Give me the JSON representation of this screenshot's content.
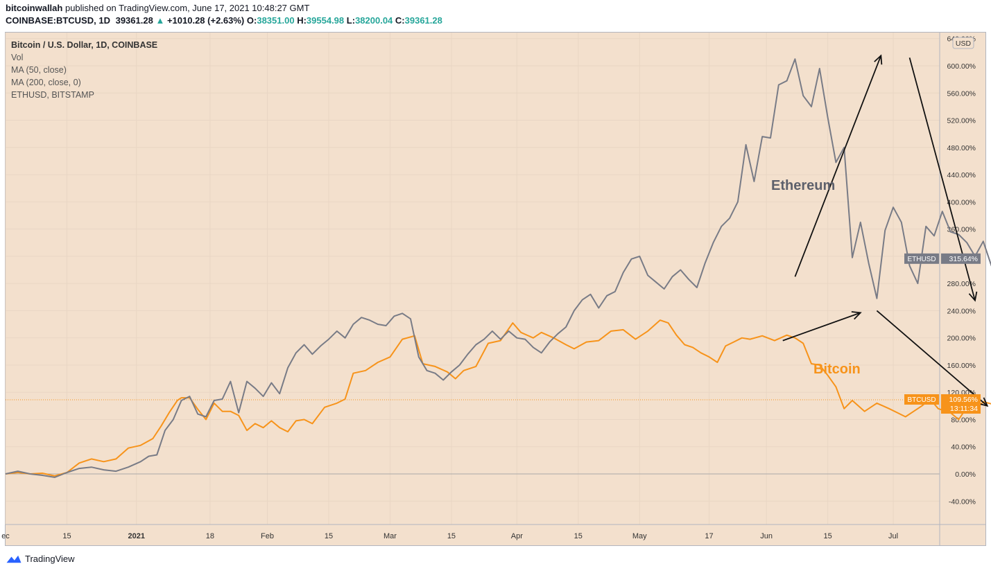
{
  "header": {
    "publisher": "bitcoinwallah",
    "published_text": "published on TradingView.com, June 17, 2021 10:48:27 GMT",
    "symbol": "COINBASE:BTCUSD, 1D",
    "last": "39361.28",
    "change": "+1010.28 (+2.63%)",
    "open_label": "O:",
    "open": "38351.00",
    "high_label": "H:",
    "high": "39554.98",
    "low_label": "L:",
    "low": "38200.04",
    "close_label": "C:",
    "close": "39361.28"
  },
  "legend": {
    "title": "Bitcoin / U.S. Dollar, 1D, COINBASE",
    "items": [
      "Vol",
      "MA (50, close)",
      "MA (200, close, 0)",
      "ETHUSD, BITSTAMP"
    ]
  },
  "annotations": {
    "eth_text": "Ethereum",
    "btc_text": "Bitcoin"
  },
  "price_scale": {
    "currency": "USD"
  },
  "badges": {
    "eth_symbol": "ETHUSD",
    "eth_value": "315.64%",
    "btc_symbol": "BTCUSD",
    "btc_value": "109.56%",
    "btc_countdown": "13:11:34"
  },
  "footer": {
    "brand": "TradingView"
  },
  "colors": {
    "btc": "#f7931a",
    "eth": "#787b86",
    "bg": "#f3e0cd",
    "grid": "#e9d6c4"
  },
  "chart_data": {
    "type": "line",
    "title": "Bitcoin / U.S. Dollar, 1D, COINBASE",
    "ylabel": "",
    "ylim": [
      -60,
      640
    ],
    "y_unit": "%",
    "y_ticks": [
      -40,
      0,
      40,
      80,
      120,
      160,
      200,
      240,
      280,
      320,
      360,
      400,
      440,
      480,
      520,
      560,
      600,
      640
    ],
    "x_ticks": [
      "ec",
      "15",
      "2021",
      "18",
      "Feb",
      "15",
      "Mar",
      "15",
      "Apr",
      "15",
      "May",
      "17",
      "Jun",
      "15",
      "Jul"
    ],
    "x_tick_days": [
      0,
      15,
      32,
      50,
      64,
      79,
      94,
      109,
      125,
      140,
      155,
      172,
      186,
      201,
      217
    ],
    "x_range_days": [
      0,
      237
    ],
    "series": [
      {
        "name": "BTCUSD",
        "color": "#f7931a",
        "points": [
          [
            0,
            0
          ],
          [
            3,
            2
          ],
          [
            6,
            0
          ],
          [
            9,
            1
          ],
          [
            12,
            -3
          ],
          [
            15,
            2
          ],
          [
            18,
            16
          ],
          [
            21,
            22
          ],
          [
            24,
            18
          ],
          [
            27,
            22
          ],
          [
            30,
            38
          ],
          [
            33,
            42
          ],
          [
            36,
            52
          ],
          [
            38,
            70
          ],
          [
            40,
            90
          ],
          [
            42,
            108
          ],
          [
            43,
            112
          ],
          [
            45,
            112
          ],
          [
            47,
            95
          ],
          [
            49,
            80
          ],
          [
            51,
            104
          ],
          [
            53,
            92
          ],
          [
            55,
            92
          ],
          [
            57,
            86
          ],
          [
            59,
            64
          ],
          [
            61,
            74
          ],
          [
            63,
            68
          ],
          [
            65,
            78
          ],
          [
            67,
            68
          ],
          [
            69,
            62
          ],
          [
            71,
            78
          ],
          [
            73,
            80
          ],
          [
            75,
            74
          ],
          [
            78,
            98
          ],
          [
            81,
            104
          ],
          [
            83,
            110
          ],
          [
            85,
            148
          ],
          [
            88,
            152
          ],
          [
            91,
            164
          ],
          [
            94,
            172
          ],
          [
            97,
            198
          ],
          [
            100,
            203
          ],
          [
            102,
            162
          ],
          [
            105,
            158
          ],
          [
            108,
            150
          ],
          [
            110,
            140
          ],
          [
            112,
            152
          ],
          [
            115,
            158
          ],
          [
            118,
            192
          ],
          [
            121,
            196
          ],
          [
            124,
            222
          ],
          [
            126,
            208
          ],
          [
            129,
            200
          ],
          [
            131,
            208
          ],
          [
            134,
            200
          ],
          [
            137,
            190
          ],
          [
            139,
            184
          ],
          [
            142,
            194
          ],
          [
            145,
            196
          ],
          [
            148,
            210
          ],
          [
            151,
            212
          ],
          [
            154,
            198
          ],
          [
            157,
            210
          ],
          [
            160,
            226
          ],
          [
            162,
            222
          ],
          [
            164,
            204
          ],
          [
            166,
            190
          ],
          [
            168,
            186
          ],
          [
            170,
            178
          ],
          [
            172,
            172
          ],
          [
            174,
            164
          ],
          [
            176,
            188
          ],
          [
            178,
            194
          ],
          [
            180,
            200
          ],
          [
            182,
            198
          ],
          [
            185,
            203
          ],
          [
            188,
            196
          ],
          [
            191,
            204
          ],
          [
            193,
            200
          ],
          [
            195,
            192
          ],
          [
            197,
            162
          ],
          [
            199,
            160
          ],
          [
            201,
            145
          ],
          [
            203,
            128
          ],
          [
            205,
            96
          ],
          [
            207,
            108
          ],
          [
            210,
            92
          ],
          [
            213,
            104
          ],
          [
            216,
            96
          ],
          [
            218,
            90
          ],
          [
            220,
            84
          ],
          [
            222,
            92
          ],
          [
            224,
            100
          ],
          [
            226,
            110
          ],
          [
            228,
            96
          ],
          [
            231,
            90
          ],
          [
            233,
            80
          ],
          [
            235,
            98
          ],
          [
            237,
            94
          ],
          [
            239,
            106
          ],
          [
            241,
            103
          ],
          [
            243,
            94
          ],
          [
            245,
            110
          ],
          [
            247,
            108
          ],
          [
            249,
            102
          ],
          [
            251,
            109
          ]
        ]
      },
      {
        "name": "ETHUSD",
        "color": "#787b86",
        "points": [
          [
            0,
            0
          ],
          [
            3,
            4
          ],
          [
            6,
            0
          ],
          [
            9,
            -2
          ],
          [
            12,
            -5
          ],
          [
            15,
            2
          ],
          [
            18,
            8
          ],
          [
            21,
            10
          ],
          [
            24,
            6
          ],
          [
            27,
            4
          ],
          [
            30,
            10
          ],
          [
            33,
            18
          ],
          [
            35,
            26
          ],
          [
            37,
            28
          ],
          [
            39,
            64
          ],
          [
            41,
            80
          ],
          [
            43,
            108
          ],
          [
            45,
            114
          ],
          [
            47,
            88
          ],
          [
            49,
            84
          ],
          [
            51,
            108
          ],
          [
            53,
            110
          ],
          [
            55,
            136
          ],
          [
            57,
            90
          ],
          [
            59,
            136
          ],
          [
            61,
            126
          ],
          [
            63,
            114
          ],
          [
            65,
            134
          ],
          [
            67,
            118
          ],
          [
            69,
            156
          ],
          [
            71,
            178
          ],
          [
            73,
            190
          ],
          [
            75,
            176
          ],
          [
            77,
            188
          ],
          [
            79,
            198
          ],
          [
            81,
            210
          ],
          [
            83,
            200
          ],
          [
            85,
            220
          ],
          [
            87,
            230
          ],
          [
            89,
            226
          ],
          [
            91,
            220
          ],
          [
            93,
            218
          ],
          [
            95,
            232
          ],
          [
            97,
            236
          ],
          [
            99,
            228
          ],
          [
            101,
            172
          ],
          [
            103,
            152
          ],
          [
            105,
            148
          ],
          [
            107,
            138
          ],
          [
            109,
            150
          ],
          [
            111,
            160
          ],
          [
            113,
            176
          ],
          [
            115,
            190
          ],
          [
            117,
            198
          ],
          [
            119,
            210
          ],
          [
            121,
            198
          ],
          [
            123,
            210
          ],
          [
            125,
            200
          ],
          [
            127,
            198
          ],
          [
            129,
            186
          ],
          [
            131,
            178
          ],
          [
            133,
            194
          ],
          [
            135,
            206
          ],
          [
            137,
            216
          ],
          [
            139,
            240
          ],
          [
            141,
            256
          ],
          [
            143,
            264
          ],
          [
            145,
            244
          ],
          [
            147,
            262
          ],
          [
            149,
            268
          ],
          [
            151,
            296
          ],
          [
            153,
            316
          ],
          [
            155,
            320
          ],
          [
            157,
            292
          ],
          [
            159,
            282
          ],
          [
            161,
            272
          ],
          [
            163,
            290
          ],
          [
            165,
            300
          ],
          [
            167,
            286
          ],
          [
            169,
            274
          ],
          [
            171,
            310
          ],
          [
            173,
            340
          ],
          [
            175,
            364
          ],
          [
            177,
            376
          ],
          [
            179,
            400
          ],
          [
            181,
            484
          ],
          [
            183,
            430
          ],
          [
            185,
            496
          ],
          [
            187,
            494
          ],
          [
            189,
            572
          ],
          [
            191,
            578
          ],
          [
            193,
            610
          ],
          [
            195,
            556
          ],
          [
            197,
            540
          ],
          [
            199,
            596
          ],
          [
            201,
            524
          ],
          [
            203,
            458
          ],
          [
            205,
            480
          ],
          [
            207,
            318
          ],
          [
            209,
            370
          ],
          [
            211,
            310
          ],
          [
            213,
            258
          ],
          [
            215,
            358
          ],
          [
            217,
            392
          ],
          [
            219,
            370
          ],
          [
            221,
            306
          ],
          [
            223,
            280
          ],
          [
            225,
            364
          ],
          [
            227,
            350
          ],
          [
            229,
            386
          ],
          [
            231,
            356
          ],
          [
            233,
            352
          ],
          [
            235,
            340
          ],
          [
            237,
            320
          ],
          [
            239,
            342
          ],
          [
            241,
            306
          ],
          [
            243,
            302
          ],
          [
            245,
            332
          ],
          [
            247,
            344
          ],
          [
            249,
            336
          ],
          [
            251,
            306
          ],
          [
            253,
            316
          ]
        ]
      }
    ],
    "arrows": [
      {
        "series": "ETHUSD",
        "from": [
          193,
          290
        ],
        "to": [
          214,
          615
        ]
      },
      {
        "series": "ETHUSD",
        "from": [
          221,
          612
        ],
        "to": [
          237,
          255
        ]
      },
      {
        "series": "BTCUSD",
        "from": [
          190,
          196
        ],
        "to": [
          209,
          237
        ]
      },
      {
        "series": "BTCUSD",
        "from": [
          213,
          240
        ],
        "to": [
          240,
          100
        ]
      }
    ]
  }
}
